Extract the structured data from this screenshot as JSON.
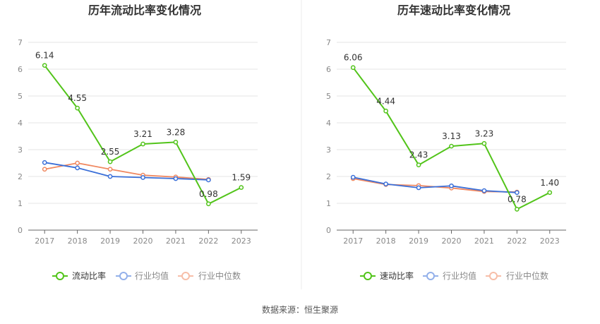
{
  "source_label": "数据来源：恒生聚源",
  "chart_data": [
    {
      "type": "line",
      "title": "历年流动比率变化情况",
      "x": [
        "2017",
        "2018",
        "2019",
        "2020",
        "2021",
        "2022",
        "2023"
      ],
      "ylim": [
        0,
        7
      ],
      "yticks": [
        0,
        1,
        2,
        3,
        4,
        5,
        6,
        7
      ],
      "grid": true,
      "legend_position": "bottom",
      "series": [
        {
          "name": "流动比率",
          "color": "#52c41a",
          "values": [
            6.14,
            4.55,
            2.55,
            3.21,
            3.28,
            0.98,
            1.59
          ],
          "labels": [
            "6.14",
            "4.55",
            "2.55",
            "3.21",
            "3.28",
            "0.98",
            "1.59"
          ]
        },
        {
          "name": "行业均值",
          "color": "#3a6fd8",
          "values": [
            2.52,
            2.32,
            2.0,
            1.96,
            1.92,
            1.87,
            null
          ]
        },
        {
          "name": "行业中位数",
          "color": "#f08860",
          "values": [
            2.27,
            2.5,
            2.27,
            2.05,
            1.98,
            1.89,
            null
          ]
        }
      ]
    },
    {
      "type": "line",
      "title": "历年速动比率变化情况",
      "x": [
        "2017",
        "2018",
        "2019",
        "2020",
        "2021",
        "2022",
        "2023"
      ],
      "ylim": [
        0,
        7
      ],
      "yticks": [
        0,
        1,
        2,
        3,
        4,
        5,
        6,
        7
      ],
      "grid": true,
      "legend_position": "bottom",
      "series": [
        {
          "name": "速动比率",
          "color": "#52c41a",
          "values": [
            6.06,
            4.44,
            2.43,
            3.13,
            3.23,
            0.78,
            1.4
          ],
          "labels": [
            "6.06",
            "4.44",
            "2.43",
            "3.13",
            "3.23",
            "0.78",
            "1.40"
          ]
        },
        {
          "name": "行业均值",
          "color": "#3a6fd8",
          "values": [
            1.97,
            1.72,
            1.58,
            1.65,
            1.47,
            1.4,
            null
          ]
        },
        {
          "name": "行业中位数",
          "color": "#f08860",
          "values": [
            1.92,
            1.7,
            1.66,
            1.57,
            1.44,
            1.42,
            null
          ]
        }
      ]
    }
  ]
}
